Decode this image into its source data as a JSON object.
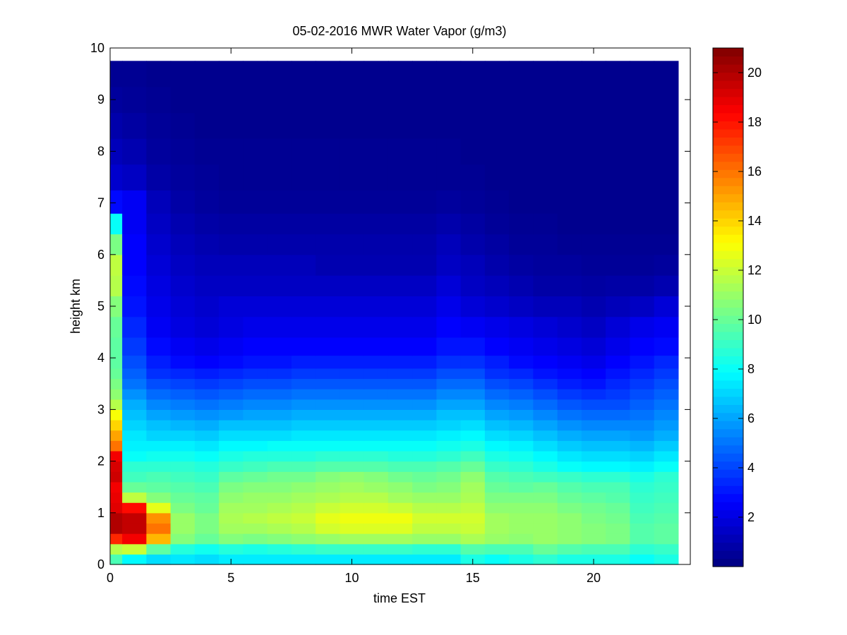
{
  "chart_data": {
    "type": "heatmap",
    "title": "05-02-2016 MWR Water Vapor (g/m3)",
    "xlabel": "time EST",
    "ylabel": "height km",
    "xlim": [
      0,
      24
    ],
    "ylim": [
      0,
      10
    ],
    "xticks": [
      0,
      5,
      10,
      15,
      20
    ],
    "yticks": [
      0,
      1,
      2,
      3,
      4,
      5,
      6,
      7,
      8,
      9,
      10
    ],
    "grid": false,
    "colormap": "jet",
    "clim": [
      0,
      21
    ],
    "colorbar_ticks": [
      2,
      4,
      6,
      8,
      10,
      12,
      14,
      16,
      18,
      20
    ],
    "time_hours": [
      0,
      1,
      2,
      3,
      4,
      5,
      6,
      7,
      8,
      9,
      10,
      11,
      12,
      13,
      14,
      15,
      16,
      17,
      18,
      19,
      20,
      21,
      22,
      23
    ],
    "height_km": [
      0.1,
      0.3,
      0.5,
      0.7,
      0.9,
      1.1,
      1.3,
      1.5,
      1.7,
      1.9,
      2.1,
      2.3,
      2.5,
      2.7,
      2.9,
      3.1,
      3.3,
      3.5,
      3.7,
      3.9,
      4.2,
      4.6,
      5.0,
      5.4,
      5.8,
      6.2,
      6.6,
      7.0,
      7.5,
      8.0,
      8.5,
      9.0,
      9.5
    ],
    "values": [
      [
        9.4,
        7.8,
        7.2,
        7.4,
        7.2,
        7.5,
        7.5,
        7.5,
        7.5,
        7.5,
        7.5,
        7.5,
        7.5,
        7.5,
        7.5,
        8.4,
        8.0,
        8.4,
        8.8,
        8.4,
        8.4,
        8.4,
        8.0,
        8.4
      ],
      [
        11.6,
        12.0,
        9.8,
        8.6,
        8.2,
        8.6,
        8.4,
        8.6,
        8.8,
        9.0,
        9.0,
        9.0,
        9.0,
        8.8,
        8.8,
        9.6,
        9.4,
        9.4,
        10.0,
        9.6,
        9.4,
        9.4,
        8.8,
        9.0
      ],
      [
        17.6,
        18.6,
        14.6,
        10.6,
        10.0,
        10.6,
        10.4,
        10.6,
        10.8,
        11.0,
        11.2,
        11.2,
        11.2,
        11.0,
        11.0,
        11.4,
        11.0,
        10.8,
        11.0,
        10.8,
        10.6,
        10.4,
        9.6,
        9.8
      ],
      [
        20.0,
        19.6,
        16.0,
        11.0,
        10.4,
        11.2,
        11.2,
        11.4,
        11.6,
        12.2,
        12.4,
        12.4,
        12.4,
        11.8,
        11.8,
        12.0,
        11.2,
        11.0,
        11.0,
        10.8,
        10.6,
        10.4,
        9.6,
        9.8
      ],
      [
        20.0,
        19.6,
        15.4,
        11.0,
        10.4,
        11.4,
        11.6,
        11.8,
        12.0,
        12.6,
        12.8,
        12.8,
        12.8,
        12.2,
        12.2,
        12.2,
        11.2,
        11.0,
        11.0,
        10.8,
        10.4,
        10.2,
        9.4,
        9.6
      ],
      [
        19.0,
        18.2,
        12.6,
        10.4,
        10.0,
        11.2,
        11.2,
        11.4,
        11.6,
        12.0,
        12.2,
        12.2,
        12.0,
        11.6,
        11.6,
        11.8,
        10.8,
        10.8,
        10.8,
        10.4,
        10.2,
        10.0,
        9.2,
        9.4
      ],
      [
        18.8,
        11.8,
        10.6,
        10.0,
        9.8,
        10.8,
        11.0,
        11.0,
        11.2,
        11.4,
        11.6,
        11.6,
        11.2,
        11.0,
        11.0,
        11.4,
        10.4,
        10.4,
        10.4,
        10.0,
        9.8,
        9.6,
        9.0,
        9.2
      ],
      [
        18.6,
        10.0,
        9.8,
        9.6,
        9.4,
        10.4,
        10.6,
        10.6,
        10.8,
        11.0,
        11.2,
        11.0,
        10.8,
        10.4,
        10.6,
        11.2,
        10.0,
        9.8,
        10.0,
        9.6,
        9.4,
        9.4,
        8.8,
        9.0
      ],
      [
        19.4,
        9.2,
        9.4,
        9.2,
        9.0,
        9.8,
        10.0,
        10.2,
        10.2,
        10.6,
        10.8,
        10.6,
        10.2,
        10.0,
        10.2,
        10.8,
        9.6,
        9.4,
        9.2,
        9.0,
        8.8,
        8.8,
        8.4,
        8.8
      ],
      [
        19.2,
        8.8,
        8.8,
        8.8,
        8.6,
        9.0,
        9.2,
        9.4,
        9.4,
        9.6,
        9.6,
        9.6,
        9.4,
        9.4,
        9.6,
        10.0,
        9.0,
        8.8,
        8.4,
        8.0,
        7.8,
        7.8,
        7.6,
        8.0
      ],
      [
        18.6,
        8.0,
        8.2,
        8.2,
        8.0,
        8.4,
        8.6,
        8.6,
        8.6,
        8.8,
        8.8,
        8.8,
        8.6,
        8.6,
        8.8,
        9.2,
        8.4,
        8.2,
        7.8,
        7.4,
        7.2,
        7.2,
        7.0,
        7.4
      ],
      [
        16.0,
        7.6,
        7.6,
        7.6,
        7.4,
        7.8,
        7.8,
        8.0,
        8.0,
        8.0,
        8.0,
        8.0,
        8.0,
        8.0,
        8.2,
        8.4,
        7.8,
        7.6,
        7.2,
        6.8,
        6.6,
        6.6,
        6.4,
        6.8
      ],
      [
        15.0,
        7.4,
        7.0,
        7.0,
        6.8,
        7.2,
        7.2,
        7.2,
        7.4,
        7.4,
        7.4,
        7.4,
        7.4,
        7.4,
        7.6,
        7.8,
        7.2,
        7.0,
        6.6,
        6.2,
        6.0,
        6.0,
        5.8,
        6.2
      ],
      [
        14.0,
        7.0,
        6.6,
        6.4,
        6.2,
        6.6,
        6.6,
        6.6,
        6.8,
        6.8,
        6.8,
        6.8,
        6.8,
        6.8,
        7.0,
        7.2,
        6.6,
        6.4,
        6.0,
        5.6,
        5.4,
        5.4,
        5.4,
        5.8
      ],
      [
        13.0,
        6.6,
        6.0,
        5.8,
        5.6,
        5.8,
        6.0,
        6.0,
        6.2,
        6.2,
        6.2,
        6.2,
        6.2,
        6.2,
        6.6,
        6.6,
        6.0,
        5.8,
        5.4,
        5.0,
        4.8,
        4.8,
        5.0,
        5.4
      ],
      [
        11.6,
        6.2,
        5.4,
        5.2,
        5.0,
        5.2,
        5.4,
        5.4,
        5.6,
        5.6,
        5.6,
        5.6,
        5.6,
        5.6,
        6.0,
        6.0,
        5.4,
        5.2,
        4.8,
        4.4,
        4.2,
        4.2,
        4.6,
        5.0
      ],
      [
        10.8,
        5.6,
        4.8,
        4.6,
        4.4,
        4.6,
        4.8,
        4.8,
        5.0,
        5.0,
        5.0,
        5.0,
        5.0,
        5.0,
        5.4,
        5.4,
        4.8,
        4.6,
        4.2,
        3.8,
        3.6,
        3.8,
        4.2,
        4.6
      ],
      [
        10.4,
        5.0,
        4.2,
        4.0,
        3.8,
        4.0,
        4.2,
        4.2,
        4.4,
        4.4,
        4.4,
        4.4,
        4.4,
        4.4,
        4.8,
        4.8,
        4.2,
        4.0,
        3.6,
        3.2,
        3.0,
        3.4,
        3.8,
        4.2
      ],
      [
        10.0,
        4.6,
        3.6,
        3.4,
        3.2,
        3.4,
        3.6,
        3.6,
        3.8,
        3.8,
        3.8,
        3.8,
        3.8,
        3.8,
        4.2,
        4.2,
        3.6,
        3.4,
        3.0,
        2.8,
        2.6,
        3.0,
        3.4,
        3.8
      ],
      [
        9.8,
        4.2,
        3.2,
        2.8,
        2.6,
        2.8,
        3.0,
        3.0,
        3.2,
        3.2,
        3.2,
        3.2,
        3.2,
        3.2,
        3.6,
        3.6,
        3.2,
        2.8,
        2.6,
        2.4,
        2.2,
        2.6,
        3.0,
        3.4
      ],
      [
        9.8,
        3.8,
        2.8,
        2.4,
        2.2,
        2.4,
        2.6,
        2.6,
        2.6,
        2.6,
        2.6,
        2.6,
        2.6,
        2.6,
        3.0,
        3.0,
        2.6,
        2.4,
        2.2,
        2.0,
        1.8,
        2.2,
        2.6,
        2.8
      ],
      [
        10.0,
        3.4,
        2.4,
        2.0,
        1.8,
        2.0,
        2.2,
        2.2,
        2.2,
        2.2,
        2.2,
        2.2,
        2.2,
        2.2,
        2.6,
        2.4,
        2.2,
        2.0,
        1.8,
        1.6,
        1.4,
        1.8,
        2.2,
        2.4
      ],
      [
        10.6,
        3.0,
        2.2,
        1.8,
        1.6,
        1.8,
        1.8,
        1.8,
        1.8,
        1.8,
        1.8,
        1.8,
        1.8,
        1.8,
        2.2,
        1.8,
        1.6,
        1.4,
        1.2,
        1.2,
        1.0,
        1.2,
        1.4,
        1.8
      ],
      [
        11.6,
        2.8,
        2.0,
        1.6,
        1.4,
        1.4,
        1.4,
        1.4,
        1.4,
        1.4,
        1.4,
        1.4,
        1.4,
        1.4,
        1.8,
        1.4,
        1.2,
        1.0,
        0.8,
        0.8,
        0.7,
        0.8,
        0.8,
        1.0
      ],
      [
        11.8,
        2.6,
        1.8,
        1.4,
        1.2,
        1.2,
        1.2,
        1.2,
        1.2,
        1.0,
        1.0,
        1.0,
        1.0,
        1.0,
        1.4,
        1.2,
        0.9,
        0.7,
        0.6,
        0.6,
        0.5,
        0.5,
        0.5,
        0.6
      ],
      [
        10.4,
        2.6,
        1.6,
        1.2,
        1.0,
        0.9,
        0.9,
        0.9,
        0.9,
        0.9,
        0.9,
        0.9,
        0.9,
        0.9,
        1.2,
        0.9,
        0.7,
        0.5,
        0.5,
        0.4,
        0.4,
        0.4,
        0.4,
        0.4
      ],
      [
        8.0,
        2.4,
        1.4,
        1.0,
        0.8,
        0.7,
        0.7,
        0.7,
        0.7,
        0.7,
        0.7,
        0.7,
        0.7,
        0.7,
        0.9,
        0.7,
        0.5,
        0.4,
        0.4,
        0.3,
        0.3,
        0.3,
        0.3,
        0.3
      ],
      [
        2.8,
        2.4,
        1.2,
        0.8,
        0.6,
        0.5,
        0.5,
        0.5,
        0.5,
        0.5,
        0.5,
        0.5,
        0.5,
        0.5,
        0.6,
        0.5,
        0.4,
        0.3,
        0.3,
        0.3,
        0.3,
        0.3,
        0.3,
        0.3
      ],
      [
        1.6,
        1.4,
        0.8,
        0.6,
        0.5,
        0.4,
        0.4,
        0.4,
        0.4,
        0.4,
        0.4,
        0.4,
        0.4,
        0.4,
        0.4,
        0.4,
        0.3,
        0.3,
        0.3,
        0.3,
        0.3,
        0.3,
        0.3,
        0.3
      ],
      [
        1.2,
        1.0,
        0.6,
        0.5,
        0.4,
        0.4,
        0.4,
        0.4,
        0.4,
        0.4,
        0.4,
        0.4,
        0.4,
        0.4,
        0.4,
        0.3,
        0.3,
        0.3,
        0.3,
        0.3,
        0.3,
        0.3,
        0.3,
        0.3
      ],
      [
        0.9,
        0.7,
        0.5,
        0.4,
        0.3,
        0.3,
        0.3,
        0.3,
        0.3,
        0.3,
        0.3,
        0.3,
        0.3,
        0.3,
        0.3,
        0.3,
        0.3,
        0.3,
        0.3,
        0.3,
        0.3,
        0.3,
        0.3,
        0.3
      ],
      [
        0.6,
        0.5,
        0.4,
        0.3,
        0.3,
        0.3,
        0.3,
        0.3,
        0.3,
        0.3,
        0.3,
        0.3,
        0.3,
        0.3,
        0.3,
        0.3,
        0.3,
        0.3,
        0.3,
        0.3,
        0.3,
        0.3,
        0.3,
        0.3
      ],
      [
        0.4,
        0.4,
        0.3,
        0.3,
        0.3,
        0.3,
        0.3,
        0.3,
        0.3,
        0.3,
        0.3,
        0.3,
        0.3,
        0.3,
        0.3,
        0.3,
        0.3,
        0.3,
        0.3,
        0.3,
        0.3,
        0.3,
        0.3,
        0.3
      ]
    ]
  }
}
